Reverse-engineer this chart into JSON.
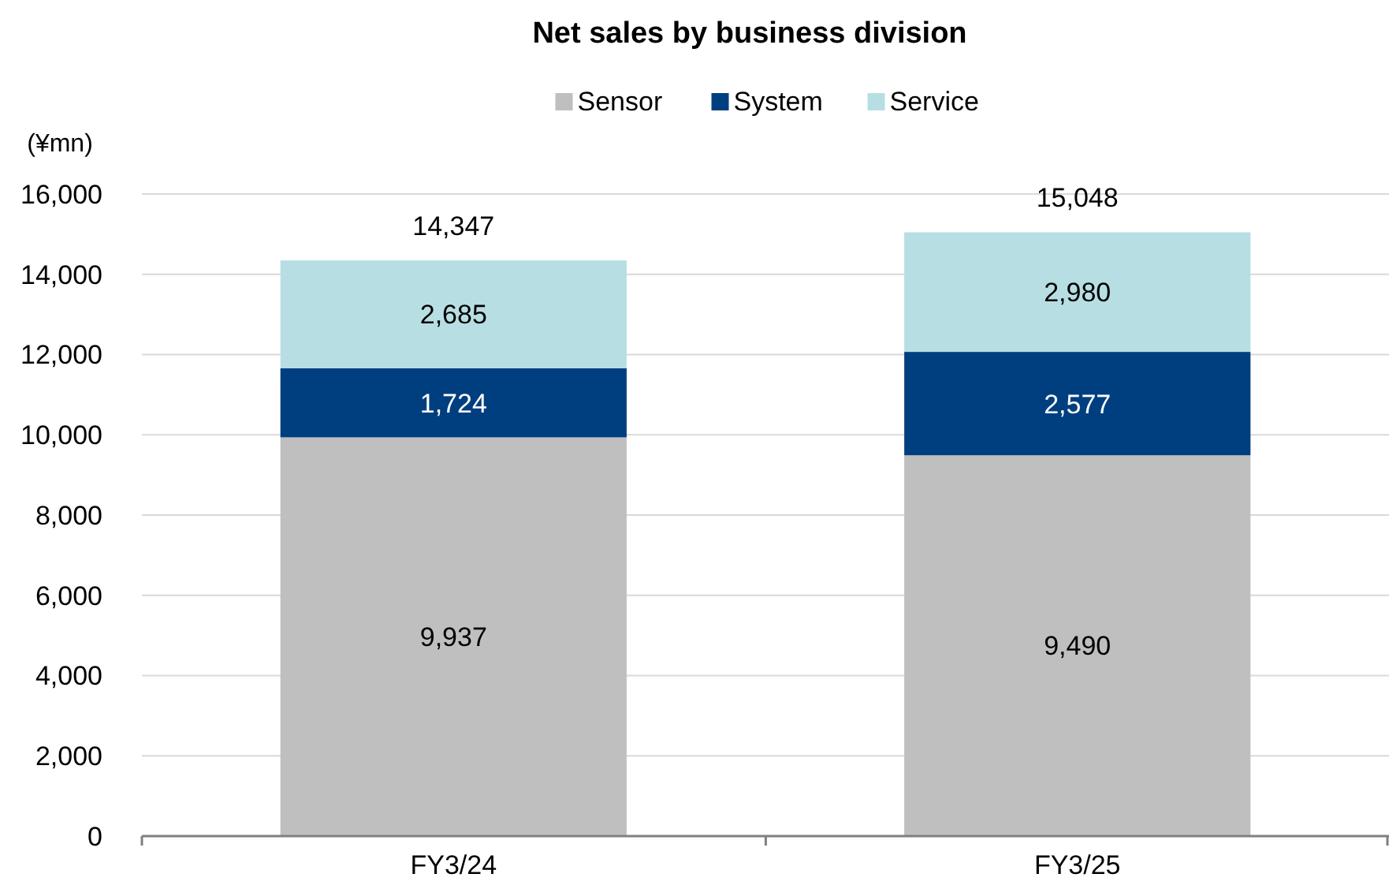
{
  "chart_data": {
    "type": "bar",
    "title": "Net sales by business division",
    "ylabel": "(¥mn)",
    "categories": [
      "FY3/24",
      "FY3/25"
    ],
    "series": [
      {
        "name": "Sensor",
        "color": "#bfbfbf",
        "values": [
          9937,
          9490
        ],
        "value_labels": [
          "9,937",
          "9,490"
        ]
      },
      {
        "name": "System",
        "color": "#003f7f",
        "values": [
          1724,
          2577
        ],
        "value_labels": [
          "1,724",
          "2,577"
        ]
      },
      {
        "name": "Service",
        "color": "#b7dfe3",
        "values": [
          2685,
          2980
        ],
        "value_labels": [
          "2,685",
          "2,980"
        ]
      }
    ],
    "stacked": true,
    "totals": [
      "14,347",
      "15,048"
    ],
    "ylim": [
      0,
      16000
    ],
    "yticks": [
      {
        "value": 0,
        "label": "0"
      },
      {
        "value": 2000,
        "label": "2,000"
      },
      {
        "value": 4000,
        "label": "4,000"
      },
      {
        "value": 6000,
        "label": "6,000"
      },
      {
        "value": 8000,
        "label": "8,000"
      },
      {
        "value": 10000,
        "label": "10,000"
      },
      {
        "value": 12000,
        "label": "12,000"
      },
      {
        "value": 14000,
        "label": "14,000"
      },
      {
        "value": 16000,
        "label": "16,000"
      }
    ],
    "grid": "y",
    "legend": "top"
  }
}
